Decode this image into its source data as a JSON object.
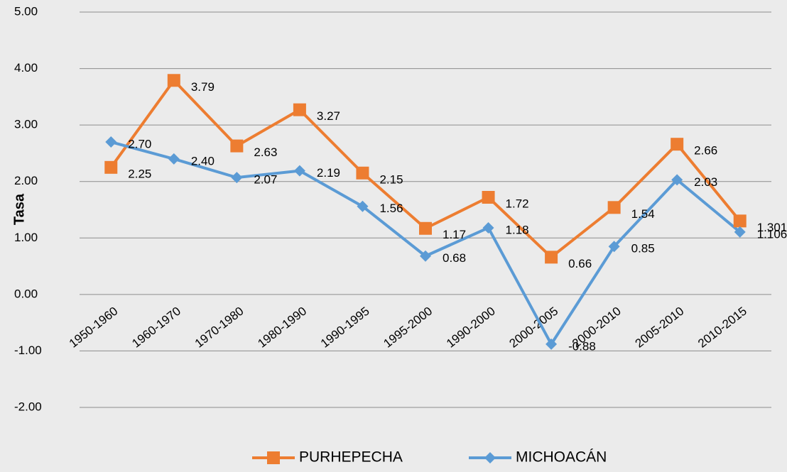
{
  "chart_data": {
    "type": "line",
    "y_label": "Tasa",
    "categories": [
      "1950-1960",
      "1960-1970",
      "1970-1980",
      "1980-1990",
      "1990-1995",
      "1995-2000",
      "1990-2000",
      "2000-2005",
      "2000-2010",
      "2005-2010",
      "2010-2015"
    ],
    "series": [
      {
        "name": "PURHEPECHA",
        "color": "#ed7d31",
        "marker": "square",
        "values": [
          2.25,
          3.79,
          2.63,
          3.27,
          2.15,
          1.17,
          1.72,
          0.66,
          1.54,
          2.66,
          1.301
        ],
        "value_labels": [
          "2.25",
          "3.79",
          "2.63",
          "3.27",
          "2.15",
          "1.17",
          "1.72",
          "0.66",
          "1.54",
          "2.66",
          "1.301"
        ]
      },
      {
        "name": "MICHOACÁN",
        "color": "#5b9bd5",
        "marker": "diamond",
        "values": [
          2.7,
          2.4,
          2.07,
          2.19,
          1.56,
          0.68,
          1.18,
          -0.88,
          0.85,
          2.03,
          1.106
        ],
        "value_labels": [
          "2.70",
          "2.40",
          "2.07",
          "2.19",
          "1.56",
          "0.68",
          "1.18",
          "-0.88",
          "0.85",
          "2.03",
          "1.106"
        ]
      }
    ],
    "ylim": [
      -2,
      5
    ],
    "yticks": [
      {
        "value": -2,
        "label": "-2.00"
      },
      {
        "value": -1,
        "label": "-1.00"
      },
      {
        "value": 0,
        "label": "0.00"
      },
      {
        "value": 1,
        "label": "1.00"
      },
      {
        "value": 2,
        "label": "2.00"
      },
      {
        "value": 3,
        "label": "3.00"
      },
      {
        "value": 4,
        "label": "4.00"
      },
      {
        "value": 5,
        "label": "5.00"
      }
    ],
    "grid": true,
    "legend": "bottom"
  }
}
